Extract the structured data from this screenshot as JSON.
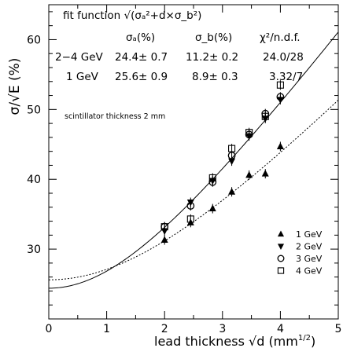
{
  "chart_data": {
    "type": "scatter",
    "xlabel": "lead thickness √d (mm",
    "xlabel_sup": "1/2",
    "xlabel_close": ")",
    "ylabel": "σ/√E (%)",
    "xlim": [
      0,
      5
    ],
    "ylim": [
      20,
      65
    ],
    "x_ticks": [
      "0",
      "1",
      "2",
      "3",
      "4",
      "5"
    ],
    "y_ticks": [
      "30",
      "40",
      "50",
      "60"
    ],
    "fit_function": "fit function √(σₐ²+d×σ_b²)",
    "table": {
      "headers": [
        "σₐ(%)",
        "σ_b(%)",
        "χ²/n.d.f."
      ],
      "rows": [
        {
          "label": "2−4 GeV",
          "a": "24.4± 0.7",
          "b": "11.2± 0.2",
          "chi2": "24.0/28"
        },
        {
          "label": "1 GeV",
          "a": "25.6± 0.9",
          "b": "8.9± 0.3",
          "chi2": "3.32/7"
        }
      ]
    },
    "annotation": "scintillator thickness 2 mm",
    "legend_position": "bottom-right",
    "series": [
      {
        "name": "1 GeV",
        "marker": "triangle-up",
        "points": [
          [
            2.0,
            31.3
          ],
          [
            2.45,
            33.8
          ],
          [
            2.83,
            35.8
          ],
          [
            3.16,
            38.2
          ],
          [
            3.46,
            40.6
          ],
          [
            3.74,
            40.8
          ],
          [
            4.0,
            44.7
          ]
        ]
      },
      {
        "name": "2 GeV",
        "marker": "triangle-down",
        "points": [
          [
            2.0,
            32.6
          ],
          [
            2.45,
            36.7
          ],
          [
            2.83,
            39.8
          ],
          [
            3.16,
            42.6
          ],
          [
            3.46,
            46.2
          ],
          [
            3.74,
            48.7
          ],
          [
            4.0,
            51.4
          ]
        ]
      },
      {
        "name": "3 GeV",
        "marker": "circle-open",
        "points": [
          [
            2.0,
            33.2
          ],
          [
            2.45,
            36.2
          ],
          [
            2.83,
            39.6
          ],
          [
            3.16,
            43.4
          ],
          [
            3.46,
            46.4
          ],
          [
            3.74,
            49.4
          ],
          [
            4.0,
            51.8
          ]
        ]
      },
      {
        "name": "4 GeV",
        "marker": "square-open",
        "points": [
          [
            2.0,
            33.2
          ],
          [
            2.45,
            34.3
          ],
          [
            2.83,
            40.2
          ],
          [
            3.16,
            44.4
          ],
          [
            3.46,
            46.7
          ],
          [
            3.74,
            49.0
          ],
          [
            4.0,
            53.5
          ]
        ]
      }
    ],
    "fits": [
      {
        "label": "2−4 GeV",
        "style": "solid",
        "sigma_a": 24.4,
        "sigma_b": 11.2
      },
      {
        "label": "1 GeV",
        "style": "dashed",
        "sigma_a": 25.6,
        "sigma_b": 8.9
      }
    ]
  }
}
